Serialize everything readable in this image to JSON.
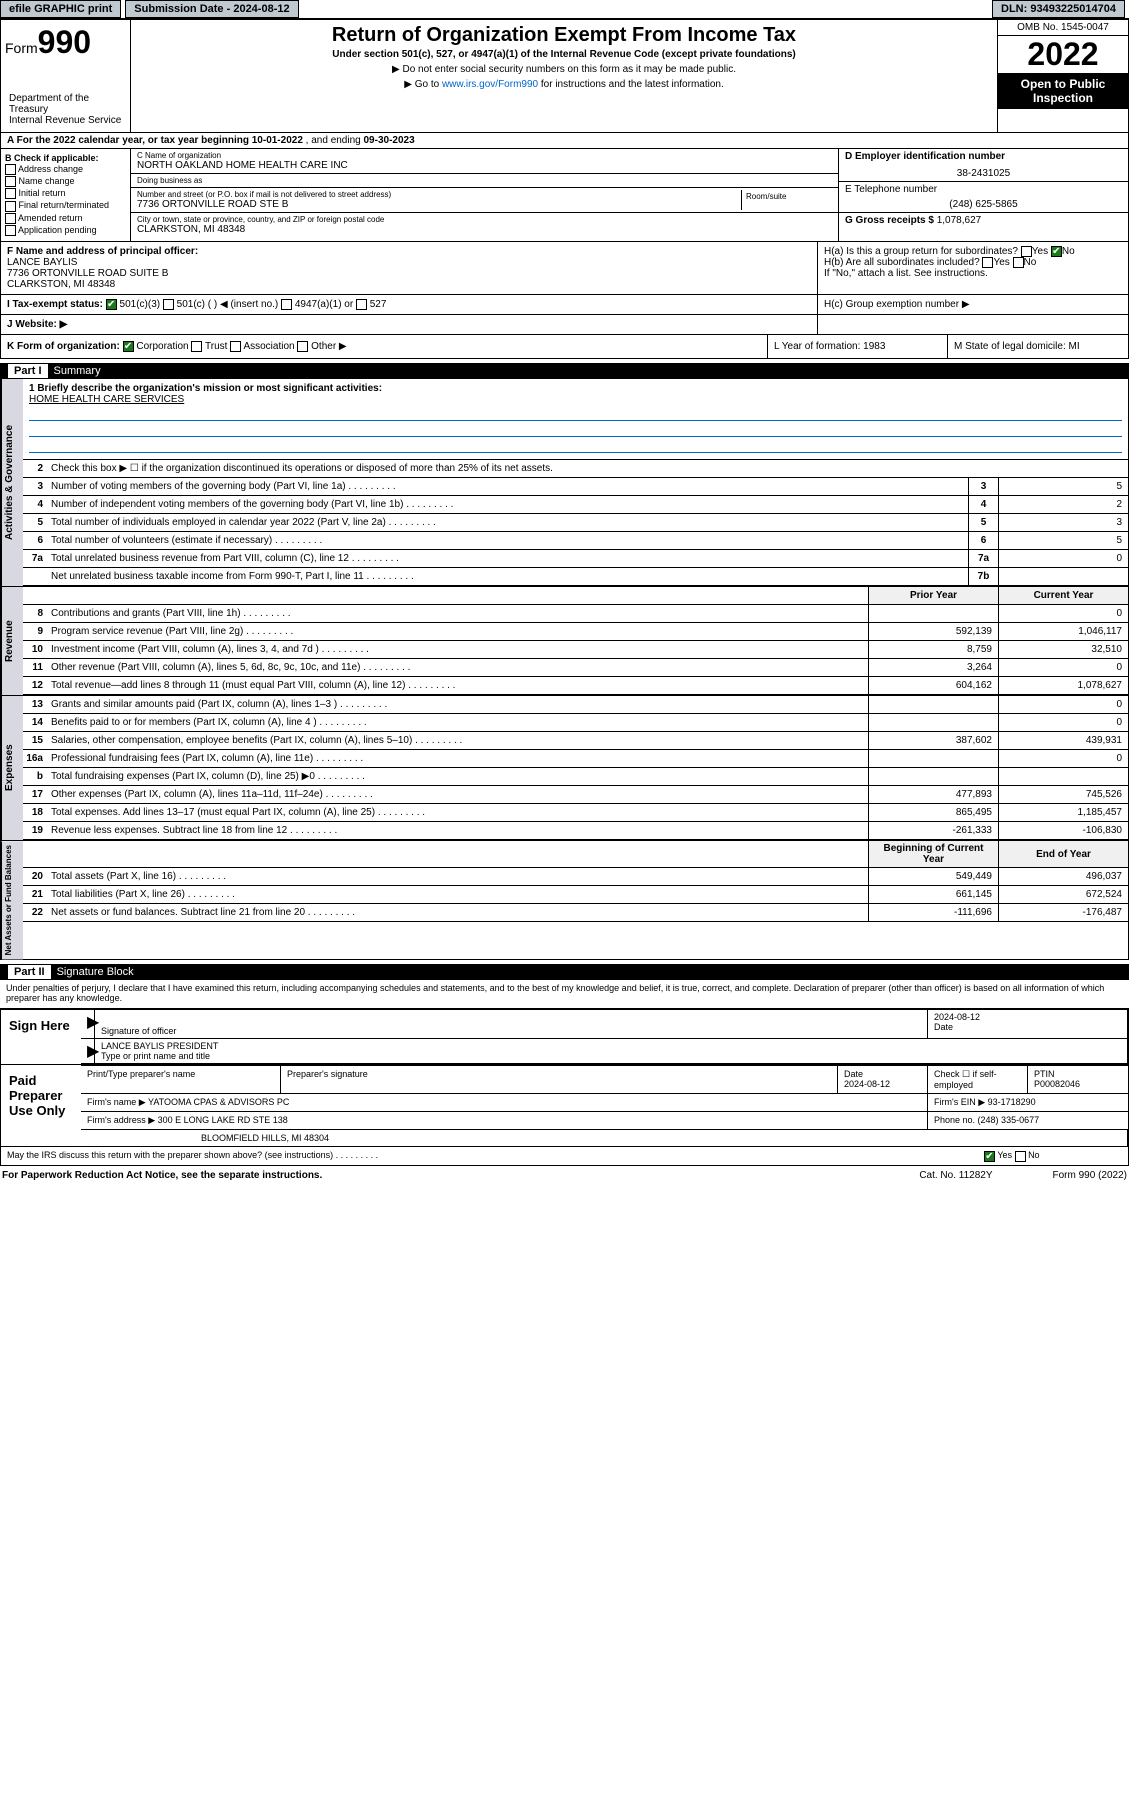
{
  "top": {
    "efile": "efile GRAPHIC print",
    "subdate_lbl": "Submission Date - ",
    "subdate": "2024-08-12",
    "dln_lbl": "DLN: ",
    "dln": "93493225014704"
  },
  "hdr": {
    "form_word": "Form",
    "form_num": "990",
    "title": "Return of Organization Exempt From Income Tax",
    "sub": "Under section 501(c), 527, or 4947(a)(1) of the Internal Revenue Code (except private foundations)",
    "tri1": "▶ Do not enter social security numbers on this form as it may be made public.",
    "tri2_a": "▶ Go to ",
    "tri2_link": "www.irs.gov/Form990",
    "tri2_b": " for instructions and the latest information.",
    "omb": "OMB No. 1545-0047",
    "year": "2022",
    "open": "Open to Public Inspection",
    "dept": "Department of the Treasury\nInternal Revenue Service"
  },
  "a": {
    "text_a": "A For the 2022 calendar year, or tax year beginning ",
    "begin": "10-01-2022",
    "text_b": " , and ending ",
    "end": "09-30-2023"
  },
  "b": {
    "hdr": "B Check if applicable:",
    "opts": [
      "Address change",
      "Name change",
      "Initial return",
      "Final return/terminated",
      "Amended return",
      "Application pending"
    ]
  },
  "c": {
    "name_lbl": "C Name of organization",
    "name": "NORTH OAKLAND HOME HEALTH CARE INC",
    "dba_lbl": "Doing business as",
    "dba": "",
    "street_lbl": "Number and street (or P.O. box if mail is not delivered to street address)",
    "street": "7736 ORTONVILLE ROAD STE B",
    "room_lbl": "Room/suite",
    "city_lbl": "City or town, state or province, country, and ZIP or foreign postal code",
    "city": "CLARKSTON, MI  48348"
  },
  "d": {
    "lbl": "D Employer identification number",
    "val": "38-2431025"
  },
  "e": {
    "lbl": "E Telephone number",
    "val": "(248) 625-5865"
  },
  "g": {
    "lbl": "G Gross receipts $ ",
    "val": "1,078,627"
  },
  "f": {
    "lbl": "F  Name and address of principal officer:",
    "name": "LANCE BAYLIS",
    "addr1": "7736 ORTONVILLE ROAD SUITE B",
    "addr2": "CLARKSTON, MI  48348"
  },
  "h": {
    "a": "H(a)  Is this a group return for subordinates?",
    "b": "H(b)  Are all subordinates included?",
    "b2": "If \"No,\" attach a list. See instructions.",
    "c": "H(c)  Group exemption number ▶",
    "yes": "Yes",
    "no": "No"
  },
  "i": {
    "lbl": "I   Tax-exempt status:",
    "o1": "501(c)(3)",
    "o2": "501(c) (   ) ◀ (insert no.)",
    "o3": "4947(a)(1) or",
    "o4": "527"
  },
  "j": {
    "lbl": "J   Website: ▶"
  },
  "k": {
    "lbl": "K Form of organization:",
    "o1": "Corporation",
    "o2": "Trust",
    "o3": "Association",
    "o4": "Other ▶",
    "l": "L Year of formation: 1983",
    "m": "M State of legal domicile: MI"
  },
  "p1": {
    "hdr": "Part I",
    "title": "Summary"
  },
  "mission": {
    "lbl": "1   Briefly describe the organization's mission or most significant activities:",
    "text": "HOME HEALTH CARE SERVICES"
  },
  "gov": {
    "tab": "Activities & Governance",
    "r2": "Check this box ▶ ☐  if the organization discontinued its operations or disposed of more than 25% of its net assets.",
    "rows": [
      {
        "n": "3",
        "t": "Number of voting members of the governing body (Part VI, line 1a)",
        "b": "3",
        "v": "5"
      },
      {
        "n": "4",
        "t": "Number of independent voting members of the governing body (Part VI, line 1b)",
        "b": "4",
        "v": "2"
      },
      {
        "n": "5",
        "t": "Total number of individuals employed in calendar year 2022 (Part V, line 2a)",
        "b": "5",
        "v": "3"
      },
      {
        "n": "6",
        "t": "Total number of volunteers (estimate if necessary)",
        "b": "6",
        "v": "5"
      },
      {
        "n": "7a",
        "t": "Total unrelated business revenue from Part VIII, column (C), line 12",
        "b": "7a",
        "v": "0"
      },
      {
        "n": "",
        "t": "Net unrelated business taxable income from Form 990-T, Part I, line 11",
        "b": "7b",
        "v": ""
      }
    ]
  },
  "rev": {
    "tab": "Revenue",
    "hdr": {
      "py": "Prior Year",
      "cy": "Current Year"
    },
    "rows": [
      {
        "n": "8",
        "t": "Contributions and grants (Part VIII, line 1h)",
        "py": "",
        "cy": "0"
      },
      {
        "n": "9",
        "t": "Program service revenue (Part VIII, line 2g)",
        "py": "592,139",
        "cy": "1,046,117"
      },
      {
        "n": "10",
        "t": "Investment income (Part VIII, column (A), lines 3, 4, and 7d )",
        "py": "8,759",
        "cy": "32,510"
      },
      {
        "n": "11",
        "t": "Other revenue (Part VIII, column (A), lines 5, 6d, 8c, 9c, 10c, and 11e)",
        "py": "3,264",
        "cy": "0"
      },
      {
        "n": "12",
        "t": "Total revenue—add lines 8 through 11 (must equal Part VIII, column (A), line 12)",
        "py": "604,162",
        "cy": "1,078,627"
      }
    ]
  },
  "exp": {
    "tab": "Expenses",
    "rows": [
      {
        "n": "13",
        "t": "Grants and similar amounts paid (Part IX, column (A), lines 1–3 )",
        "py": "",
        "cy": "0"
      },
      {
        "n": "14",
        "t": "Benefits paid to or for members (Part IX, column (A), line 4 )",
        "py": "",
        "cy": "0"
      },
      {
        "n": "15",
        "t": "Salaries, other compensation, employee benefits (Part IX, column (A), lines 5–10)",
        "py": "387,602",
        "cy": "439,931"
      },
      {
        "n": "16a",
        "t": "Professional fundraising fees (Part IX, column (A), line 11e)",
        "py": "",
        "cy": "0"
      },
      {
        "n": "b",
        "t": "Total fundraising expenses (Part IX, column (D), line 25) ▶0",
        "py": "",
        "cy": ""
      },
      {
        "n": "17",
        "t": "Other expenses (Part IX, column (A), lines 11a–11d, 11f–24e)",
        "py": "477,893",
        "cy": "745,526"
      },
      {
        "n": "18",
        "t": "Total expenses. Add lines 13–17 (must equal Part IX, column (A), line 25)",
        "py": "865,495",
        "cy": "1,185,457"
      },
      {
        "n": "19",
        "t": "Revenue less expenses. Subtract line 18 from line 12",
        "py": "-261,333",
        "cy": "-106,830"
      }
    ]
  },
  "net": {
    "tab": "Net Assets or Fund Balances",
    "hdr": {
      "py": "Beginning of Current Year",
      "cy": "End of Year"
    },
    "rows": [
      {
        "n": "20",
        "t": "Total assets (Part X, line 16)",
        "py": "549,449",
        "cy": "496,037"
      },
      {
        "n": "21",
        "t": "Total liabilities (Part X, line 26)",
        "py": "661,145",
        "cy": "672,524"
      },
      {
        "n": "22",
        "t": "Net assets or fund balances. Subtract line 21 from line 20",
        "py": "-111,696",
        "cy": "-176,487"
      }
    ]
  },
  "p2": {
    "hdr": "Part II",
    "title": "Signature Block"
  },
  "sig": {
    "decl": "Under penalties of perjury, I declare that I have examined this return, including accompanying schedules and statements, and to the best of my knowledge and belief, it is true, correct, and complete. Declaration of preparer (other than officer) is based on all information of which preparer has any knowledge.",
    "here": "Sign Here",
    "sig_of": "Signature of officer",
    "date": "Date",
    "date_v": "2024-08-12",
    "name": "LANCE BAYLIS PRESIDENT",
    "name_lbl": "Type or print name and title"
  },
  "paid": {
    "lbl": "Paid Preparer Use Only",
    "h": [
      "Print/Type preparer's name",
      "Preparer's signature",
      "Date",
      "Check ☐ if self-employed",
      "PTIN"
    ],
    "v": [
      "",
      "",
      "2024-08-12",
      "",
      "P00082046"
    ],
    "firm_lbl": "Firm's name    ▶ ",
    "firm": "YATOOMA CPAS & ADVISORS PC",
    "ein_lbl": "Firm's EIN ▶ ",
    "ein": "93-1718290",
    "addr_lbl": "Firm's address ▶ ",
    "addr": "300 E LONG LAKE RD STE 138",
    "addr2": "BLOOMFIELD HILLS, MI  48304",
    "ph_lbl": "Phone no. ",
    "ph": "(248) 335-0677",
    "may": "May the IRS discuss this return with the preparer shown above? (see instructions)",
    "yes": "Yes",
    "no": "No"
  },
  "foot": {
    "pra": "For Paperwork Reduction Act Notice, see the separate instructions.",
    "cat": "Cat. No. 11282Y",
    "form": "Form 990 (2022)"
  }
}
